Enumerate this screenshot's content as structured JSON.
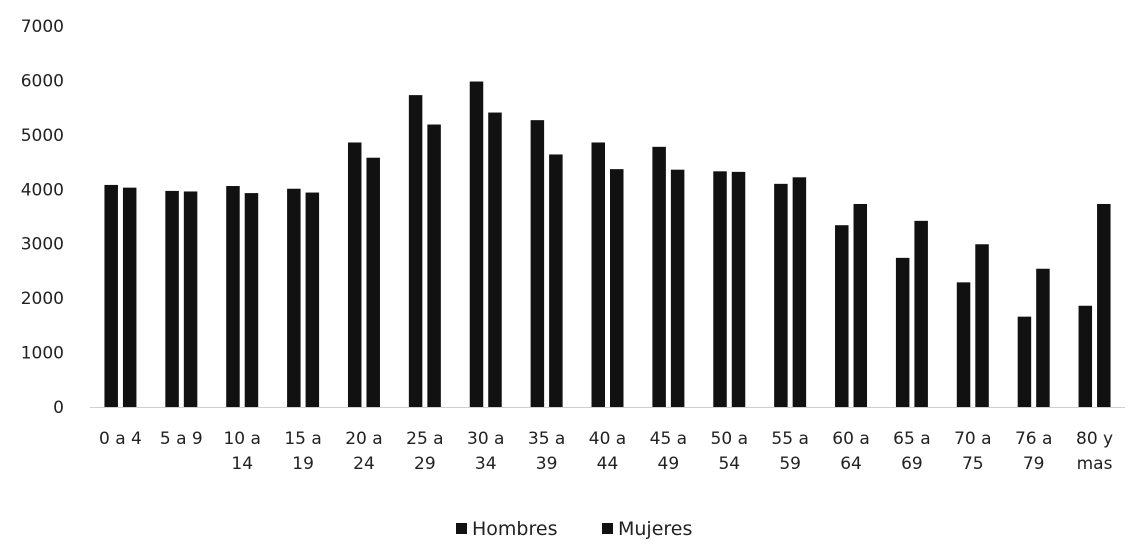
{
  "chart_data": {
    "type": "bar",
    "categories": [
      [
        "0 a 4"
      ],
      [
        "5 a 9"
      ],
      [
        "10 a",
        "14"
      ],
      [
        "15 a",
        "19"
      ],
      [
        "20 a",
        "24"
      ],
      [
        "25 a",
        "29"
      ],
      [
        "30 a",
        "34"
      ],
      [
        "35 a",
        "39"
      ],
      [
        "40 a",
        "44"
      ],
      [
        "45 a",
        "49"
      ],
      [
        "50 a",
        "54"
      ],
      [
        "55 a",
        "59"
      ],
      [
        "60 a",
        "64"
      ],
      [
        "65 a",
        "69"
      ],
      [
        "70 a",
        "75"
      ],
      [
        "76 a",
        "79"
      ],
      [
        "80 y",
        "mas"
      ]
    ],
    "series": [
      {
        "name": "Hombres",
        "values": [
          4080,
          3970,
          4060,
          4010,
          4860,
          5730,
          5980,
          5270,
          4860,
          4780,
          4330,
          4100,
          3340,
          2740,
          2290,
          1660,
          1860
        ]
      },
      {
        "name": "Mujeres",
        "values": [
          4030,
          3960,
          3930,
          3940,
          4580,
          5190,
          5410,
          4640,
          4370,
          4360,
          4320,
          4220,
          3730,
          3420,
          2990,
          2540,
          3730
        ]
      }
    ],
    "yticks": [
      "0",
      "1000",
      "2000",
      "3000",
      "4000",
      "5000",
      "6000",
      "7000"
    ],
    "ylim": [
      0,
      7000
    ],
    "grid": false,
    "legend_position": "bottom",
    "colors": {
      "Hombres": "#111111",
      "Mujeres": "#111111"
    }
  }
}
